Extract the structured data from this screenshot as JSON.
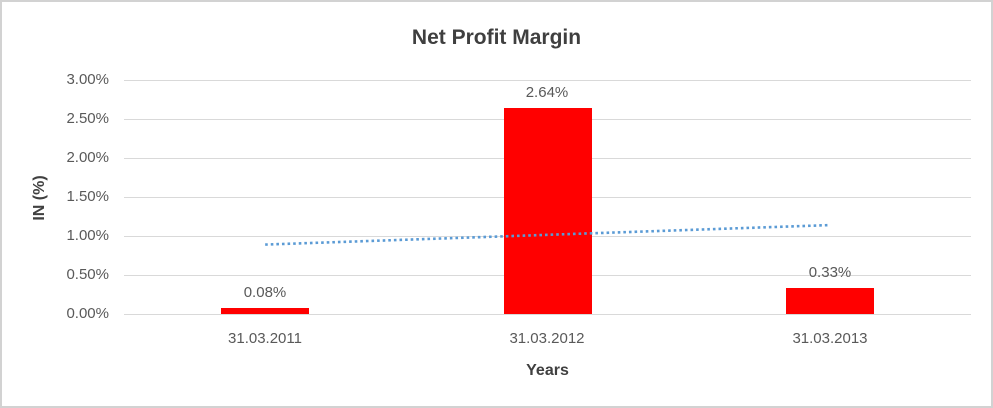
{
  "chart_data": {
    "type": "bar",
    "title": "Net Profit Margin",
    "xlabel": "Years",
    "ylabel": "IN (%)",
    "categories": [
      "31.03.2011",
      "31.03.2012",
      "31.03.2013"
    ],
    "values": [
      0.08,
      2.64,
      0.33
    ],
    "value_labels": [
      "0.08%",
      "2.64%",
      "0.33%"
    ],
    "ylim": [
      0,
      3.0
    ],
    "y_tick_step": 0.5,
    "y_tick_labels": [
      "0.00%",
      "0.50%",
      "1.00%",
      "1.50%",
      "2.00%",
      "2.50%",
      "3.00%"
    ],
    "grid": true,
    "legend": "none",
    "trendline": {
      "type": "linear",
      "style": "dotted",
      "start_value": 0.89,
      "end_value": 1.14,
      "color": "#5b9bd5"
    },
    "colors": {
      "bar": "#ff0000",
      "title_text": "#3f3f3f",
      "axis_title_text": "#404040",
      "tick_text": "#595959",
      "data_label_text": "#595959",
      "gridline": "#d9d9d9",
      "frame_border": "#d2d2d2"
    }
  }
}
